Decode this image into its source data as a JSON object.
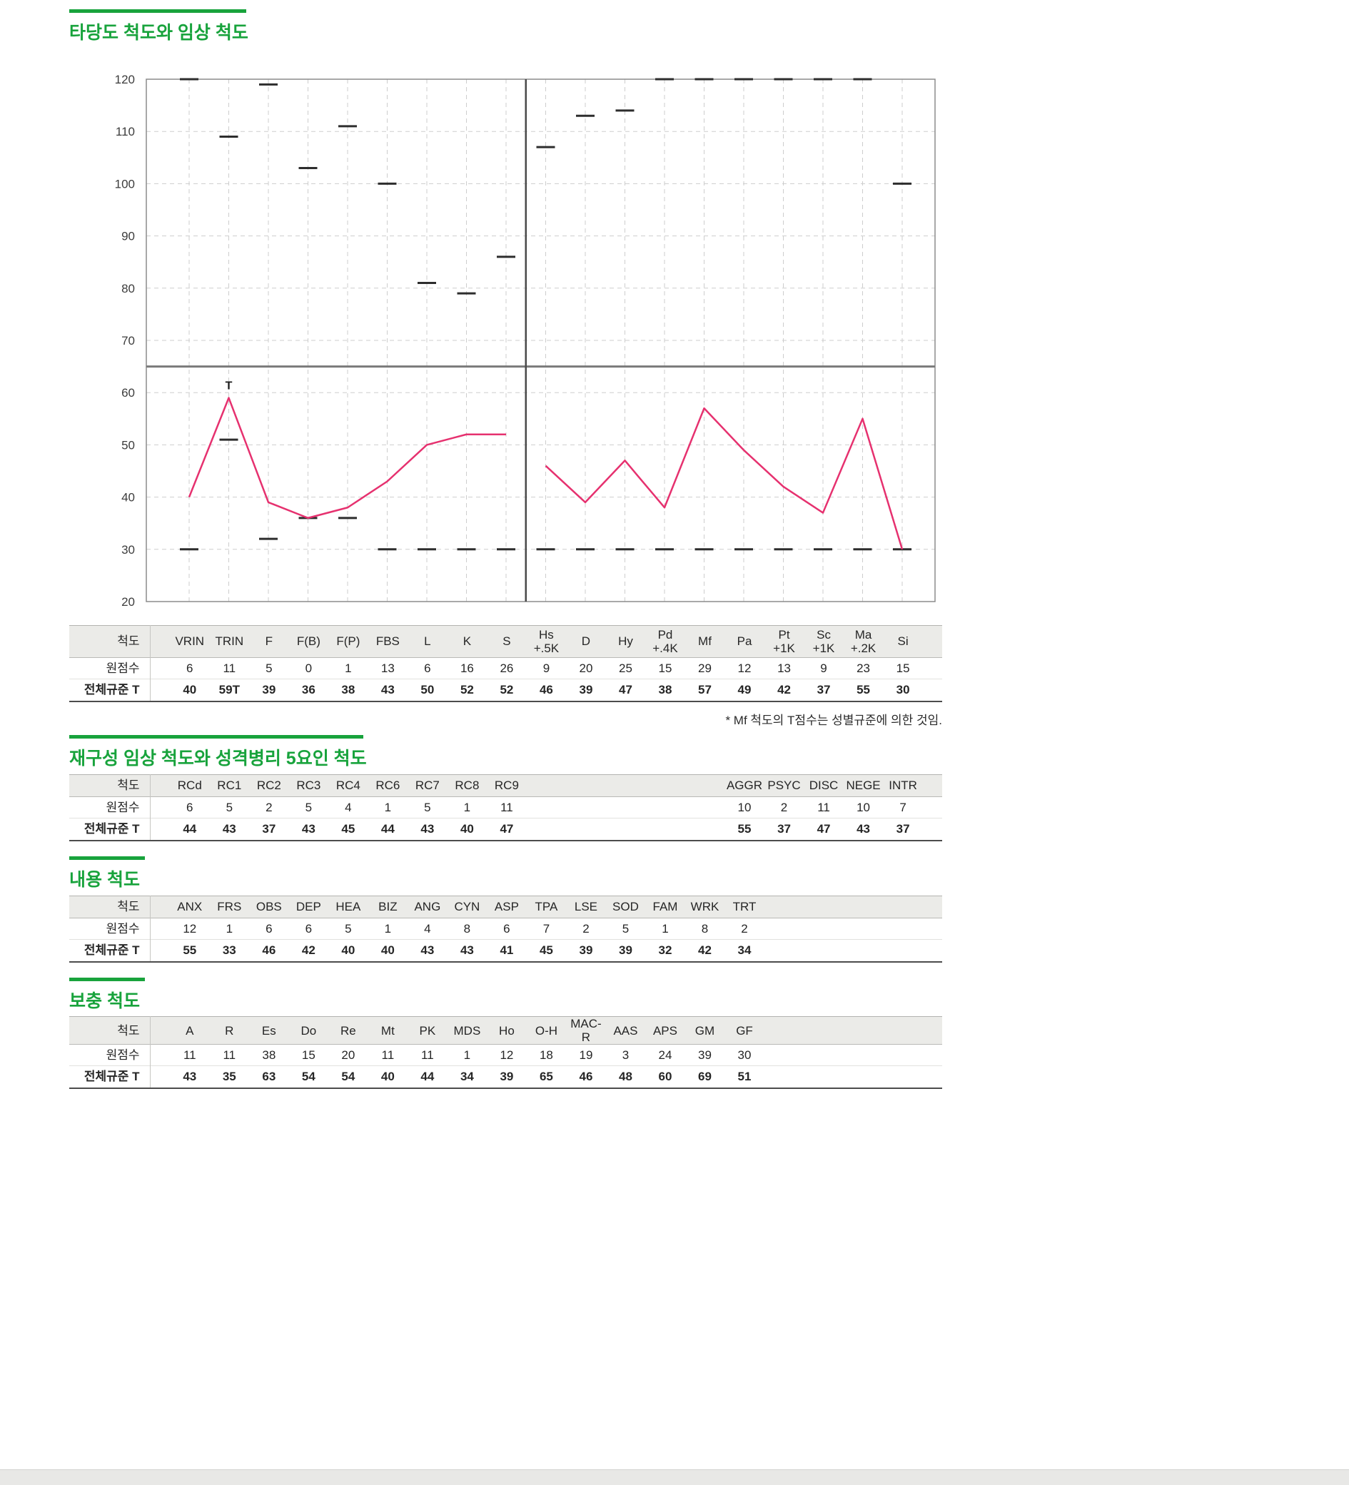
{
  "colors": {
    "green": "#18a33c",
    "pink": "#e6316f"
  },
  "sections": [
    {
      "title": "타당도 척도와 임상 척도"
    },
    {
      "title": "재구성 임상 척도와 성격병리 5요인 척도"
    },
    {
      "title": "내용 척도"
    },
    {
      "title": "보충 척도"
    }
  ],
  "row_labels": {
    "scale": "척도",
    "raw": "원점수",
    "t": "전체규준 T"
  },
  "footnote": "* Mf 척도의 T점수는 성별규준에 의한 것임.",
  "chart_data": {
    "type": "line",
    "title": "타당도 척도와 임상 척도",
    "ylim": [
      20,
      120
    ],
    "yticks": [
      20,
      30,
      40,
      50,
      60,
      70,
      80,
      90,
      100,
      110,
      120
    ],
    "reference_line_t": 65,
    "divider_after_category": "S",
    "grid": "dashed",
    "legend": "none",
    "categories": [
      "VRIN",
      "TRIN",
      "F",
      "F(B)",
      "F(P)",
      "FBS",
      "L",
      "K",
      "S",
      "Hs+.5K",
      "D",
      "Hy",
      "Pd+.4K",
      "Mf",
      "Pa",
      "Pt+1K",
      "Sc+1K",
      "Ma+.2K",
      "Si"
    ],
    "series": [
      {
        "name": "전체규준 T",
        "color": "#e6316f",
        "values": [
          40,
          59,
          39,
          36,
          38,
          43,
          50,
          52,
          52,
          46,
          39,
          47,
          38,
          57,
          49,
          42,
          37,
          55,
          30
        ]
      }
    ],
    "scale_upper_bounds": [
      120,
      109,
      119,
      103,
      111,
      100,
      81,
      79,
      86,
      107,
      113,
      114,
      120,
      120,
      120,
      120,
      120,
      120,
      100
    ],
    "scale_lower_bounds": [
      30,
      51,
      32,
      36,
      36,
      30,
      30,
      30,
      30,
      30,
      30,
      30,
      30,
      30,
      30,
      30,
      30,
      30,
      30
    ],
    "point_annotations": [
      {
        "category": "TRIN",
        "index": 1,
        "text": "T"
      }
    ]
  },
  "tables": [
    {
      "name": "validity-clinical-table",
      "two_line_header": true,
      "col_labels": [
        "VRIN",
        "TRIN",
        "F",
        "F(B)",
        "F(P)",
        "FBS",
        "L",
        "K",
        "S",
        "Hs\n+.5K",
        "D",
        "Hy",
        "Pd\n+.4K",
        "Mf",
        "Pa",
        "Pt\n+1K",
        "Sc\n+1K",
        "Ma\n+.2K",
        "Si"
      ],
      "col_slots": [
        0,
        1,
        2,
        3,
        4,
        5,
        6,
        7,
        8,
        9,
        10,
        11,
        12,
        13,
        14,
        15,
        16,
        17,
        18
      ],
      "raw": [
        "6",
        "11",
        "5",
        "0",
        "1",
        "13",
        "6",
        "16",
        "26",
        "9",
        "20",
        "25",
        "15",
        "29",
        "12",
        "13",
        "9",
        "23",
        "15"
      ],
      "t": [
        "40",
        "59T",
        "39",
        "36",
        "38",
        "43",
        "50",
        "52",
        "52",
        "46",
        "39",
        "47",
        "38",
        "57",
        "49",
        "42",
        "37",
        "55",
        "30"
      ]
    },
    {
      "name": "rc-psy5-table",
      "two_line_header": false,
      "col_labels": [
        "RCd",
        "RC1",
        "RC2",
        "RC3",
        "RC4",
        "RC6",
        "RC7",
        "RC8",
        "RC9",
        "AGGR",
        "PSYC",
        "DISC",
        "NEGE",
        "INTR"
      ],
      "col_slots": [
        0,
        1,
        2,
        3,
        4,
        5,
        6,
        7,
        8,
        14,
        15,
        16,
        17,
        18
      ],
      "raw": [
        "6",
        "5",
        "2",
        "5",
        "4",
        "1",
        "5",
        "1",
        "11",
        "10",
        "2",
        "11",
        "10",
        "7"
      ],
      "t": [
        "44",
        "43",
        "37",
        "43",
        "45",
        "44",
        "43",
        "40",
        "47",
        "55",
        "37",
        "47",
        "43",
        "37"
      ]
    },
    {
      "name": "content-scales-table",
      "two_line_header": false,
      "col_labels": [
        "ANX",
        "FRS",
        "OBS",
        "DEP",
        "HEA",
        "BIZ",
        "ANG",
        "CYN",
        "ASP",
        "TPA",
        "LSE",
        "SOD",
        "FAM",
        "WRK",
        "TRT"
      ],
      "col_slots": [
        0,
        1,
        2,
        3,
        4,
        5,
        6,
        7,
        8,
        9,
        10,
        11,
        12,
        13,
        14
      ],
      "raw": [
        "12",
        "1",
        "6",
        "6",
        "5",
        "1",
        "4",
        "8",
        "6",
        "7",
        "2",
        "5",
        "1",
        "8",
        "2"
      ],
      "t": [
        "55",
        "33",
        "46",
        "42",
        "40",
        "40",
        "43",
        "43",
        "41",
        "45",
        "39",
        "39",
        "32",
        "42",
        "34"
      ]
    },
    {
      "name": "supplementary-scales-table",
      "two_line_header": false,
      "col_labels": [
        "A",
        "R",
        "Es",
        "Do",
        "Re",
        "Mt",
        "PK",
        "MDS",
        "Ho",
        "O-H",
        "MAC-R",
        "AAS",
        "APS",
        "GM",
        "GF"
      ],
      "col_slots": [
        0,
        1,
        2,
        3,
        4,
        5,
        6,
        7,
        8,
        9,
        10,
        11,
        12,
        13,
        14
      ],
      "raw": [
        "11",
        "11",
        "38",
        "15",
        "20",
        "11",
        "11",
        "1",
        "12",
        "18",
        "19",
        "3",
        "24",
        "39",
        "30"
      ],
      "t": [
        "43",
        "35",
        "63",
        "54",
        "54",
        "40",
        "44",
        "34",
        "39",
        "65",
        "46",
        "48",
        "60",
        "69",
        "51"
      ]
    }
  ]
}
